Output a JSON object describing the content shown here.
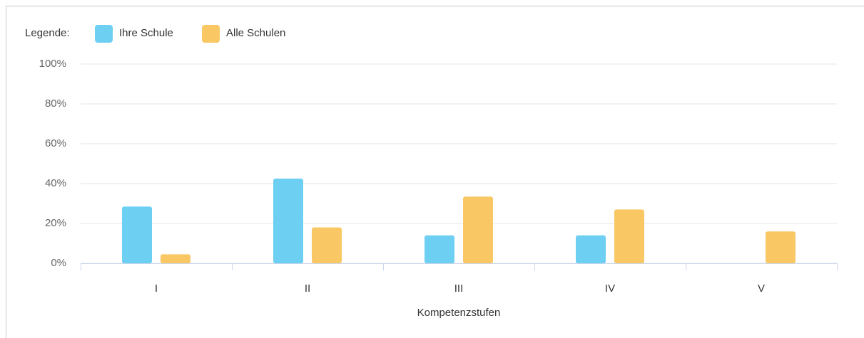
{
  "chart_data": {
    "type": "bar",
    "legend_title": "Legende:",
    "x_label": "Kompetenzstufen",
    "categories": [
      "I",
      "II",
      "III",
      "IV",
      "V"
    ],
    "series": [
      {
        "name": "Ihre Schule",
        "color": "#6dcff2",
        "values": [
          28.5,
          42.5,
          14,
          14,
          0
        ]
      },
      {
        "name": "Alle Schulen",
        "color": "#f9c764",
        "values": [
          4.5,
          18,
          33.5,
          27,
          16
        ]
      }
    ],
    "ylim": [
      0,
      100
    ],
    "yticks": [
      {
        "value": 0,
        "label": "0%"
      },
      {
        "value": 20,
        "label": "20%"
      },
      {
        "value": 40,
        "label": "40%"
      },
      {
        "value": 60,
        "label": "60%"
      },
      {
        "value": 80,
        "label": "80%"
      },
      {
        "value": 100,
        "label": "100%"
      }
    ],
    "grid": true,
    "legend_position": "top-left"
  }
}
